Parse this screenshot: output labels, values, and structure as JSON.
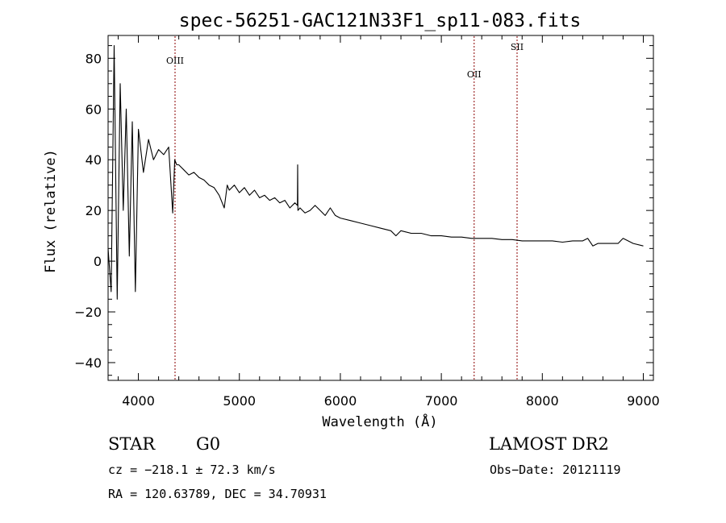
{
  "chart_data": {
    "type": "line",
    "title": "spec-56251-GAC121N33F1_sp11-083.fits",
    "xlabel": "Wavelength (Å)",
    "ylabel": "Flux (relative)",
    "xlim": [
      3700,
      9100
    ],
    "ylim": [
      -47,
      89
    ],
    "x_ticks": [
      4000,
      5000,
      6000,
      7000,
      8000,
      9000
    ],
    "y_ticks": [
      -40,
      -20,
      0,
      20,
      40,
      60,
      80
    ],
    "grid": false,
    "legend": "none",
    "line_color": "#000000",
    "marker_color": "#8b0000",
    "series": [
      {
        "name": "flux",
        "x": [
          3700,
          3730,
          3760,
          3790,
          3820,
          3850,
          3880,
          3910,
          3940,
          3970,
          4000,
          4050,
          4100,
          4150,
          4200,
          4250,
          4300,
          4340,
          4360,
          4380,
          4400,
          4450,
          4500,
          4550,
          4600,
          4650,
          4700,
          4750,
          4800,
          4850,
          4880,
          4900,
          4950,
          5000,
          5050,
          5100,
          5150,
          5200,
          5250,
          5300,
          5350,
          5400,
          5450,
          5500,
          5550,
          5575,
          5577,
          5580,
          5600,
          5650,
          5700,
          5750,
          5800,
          5850,
          5900,
          5950,
          6000,
          6100,
          6200,
          6300,
          6400,
          6500,
          6550,
          6600,
          6700,
          6800,
          6900,
          7000,
          7100,
          7200,
          7300,
          7400,
          7500,
          7600,
          7700,
          7800,
          7900,
          8000,
          8100,
          8200,
          8300,
          8400,
          8450,
          8500,
          8550,
          8600,
          8700,
          8750,
          8800,
          8900,
          9000
        ],
        "values": [
          5,
          -12,
          85,
          -15,
          70,
          20,
          60,
          2,
          55,
          -12,
          52,
          35,
          48,
          40,
          44,
          42,
          45,
          19,
          40,
          38,
          38,
          36,
          34,
          35,
          33,
          32,
          30,
          29,
          26,
          21,
          30,
          28,
          30,
          27,
          29,
          26,
          28,
          25,
          26,
          24,
          25,
          23,
          24,
          21,
          23,
          22,
          38,
          20,
          21,
          19,
          20,
          22,
          20,
          18,
          21,
          18,
          17,
          16,
          15,
          14,
          13,
          12,
          10,
          12,
          11,
          11,
          10,
          10,
          9.5,
          9.5,
          9,
          9,
          9,
          8.5,
          8.5,
          8,
          8,
          8,
          8,
          7.5,
          8,
          8,
          9,
          6,
          7,
          7,
          7,
          7,
          9,
          7,
          6
        ]
      }
    ],
    "spectral_lines": [
      {
        "label": "OIII",
        "x": 4363
      },
      {
        "label": "OII",
        "x": 7325
      },
      {
        "label": "SII",
        "x": 7750
      }
    ]
  },
  "footer": {
    "object_class": "STAR",
    "subclass": "G0",
    "survey": "LAMOST DR2",
    "redshift": "cz = −218.1 ± 72.3 km/s",
    "obs_date": "Obs−Date: 20121119",
    "coordinates": "RA = 120.63789, DEC =  34.70931"
  }
}
